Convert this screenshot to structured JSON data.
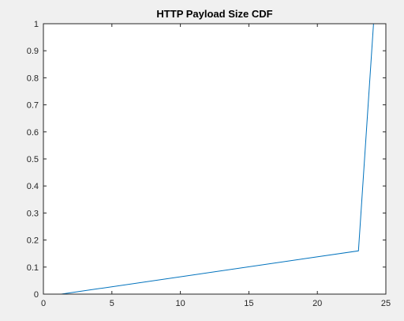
{
  "chart_data": {
    "type": "line",
    "title": "HTTP Payload Size CDF",
    "xlabel": "",
    "ylabel": "",
    "xlim": [
      0,
      25
    ],
    "ylim": [
      0,
      1
    ],
    "x_ticks": [
      0,
      5,
      10,
      15,
      20,
      25
    ],
    "y_ticks": [
      0,
      0.1,
      0.2,
      0.3,
      0.4,
      0.5,
      0.6,
      0.7,
      0.8,
      0.9,
      1
    ],
    "x_tick_labels": [
      "0",
      "5",
      "10",
      "15",
      "20",
      "25"
    ],
    "y_tick_labels": [
      "0",
      "0.1",
      "0.2",
      "0.3",
      "0.4",
      "0.5",
      "0.6",
      "0.7",
      "0.8",
      "0.9",
      "1"
    ],
    "grid": false,
    "legend": "none",
    "series": [
      {
        "color": "#0072bd",
        "x": [
          1.3,
          23.0,
          24.1
        ],
        "y": [
          0.0,
          0.16,
          1.0
        ]
      }
    ],
    "colors": {
      "figure_background": "#f0f0f0",
      "axes_background": "#ffffff",
      "axes_color": "#262626"
    }
  }
}
